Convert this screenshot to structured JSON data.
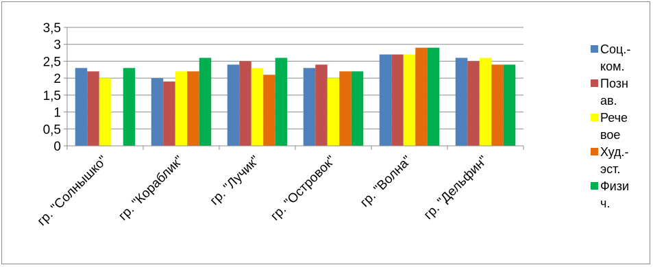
{
  "chart_data": {
    "type": "bar",
    "title": "",
    "xlabel": "",
    "ylabel": "",
    "ylim": [
      0,
      3.5
    ],
    "yticks": [
      "0",
      "0,5",
      "1",
      "1,5",
      "2",
      "2,5",
      "3",
      "3,5"
    ],
    "grid": true,
    "legend_position": "right",
    "categories": [
      "гр. \"Солнышко\"",
      "гр. \"Кораблик\"",
      "гр. \"Лучик\"",
      "гр. \"Островок\"",
      "гр. \"Волна\"",
      "гр. \"Дельфин\""
    ],
    "series": [
      {
        "name": "Соц.-ком.",
        "legend_lines": [
          "Соц.-",
          "ком."
        ],
        "color": "#4f81bd",
        "values": [
          2.3,
          2.0,
          2.4,
          2.3,
          2.7,
          2.6
        ]
      },
      {
        "name": "Познав.",
        "legend_lines": [
          "Позн",
          "ав."
        ],
        "color": "#c0504d",
        "values": [
          2.2,
          1.9,
          2.5,
          2.4,
          2.7,
          2.5
        ]
      },
      {
        "name": "Речевое",
        "legend_lines": [
          "Рече",
          "вое"
        ],
        "color": "#ffff00",
        "values": [
          2.0,
          2.2,
          2.3,
          2.0,
          2.7,
          2.6
        ]
      },
      {
        "name": "Худ.-эст.",
        "legend_lines": [
          "Худ.-",
          "эст."
        ],
        "color": "#e46c0a",
        "values": [
          0,
          2.2,
          2.1,
          2.2,
          2.9,
          2.4
        ]
      },
      {
        "name": "Физич.",
        "legend_lines": [
          "Физи",
          "ч."
        ],
        "color": "#00b050",
        "values": [
          2.3,
          2.6,
          2.6,
          2.2,
          2.9,
          2.4
        ]
      }
    ]
  }
}
